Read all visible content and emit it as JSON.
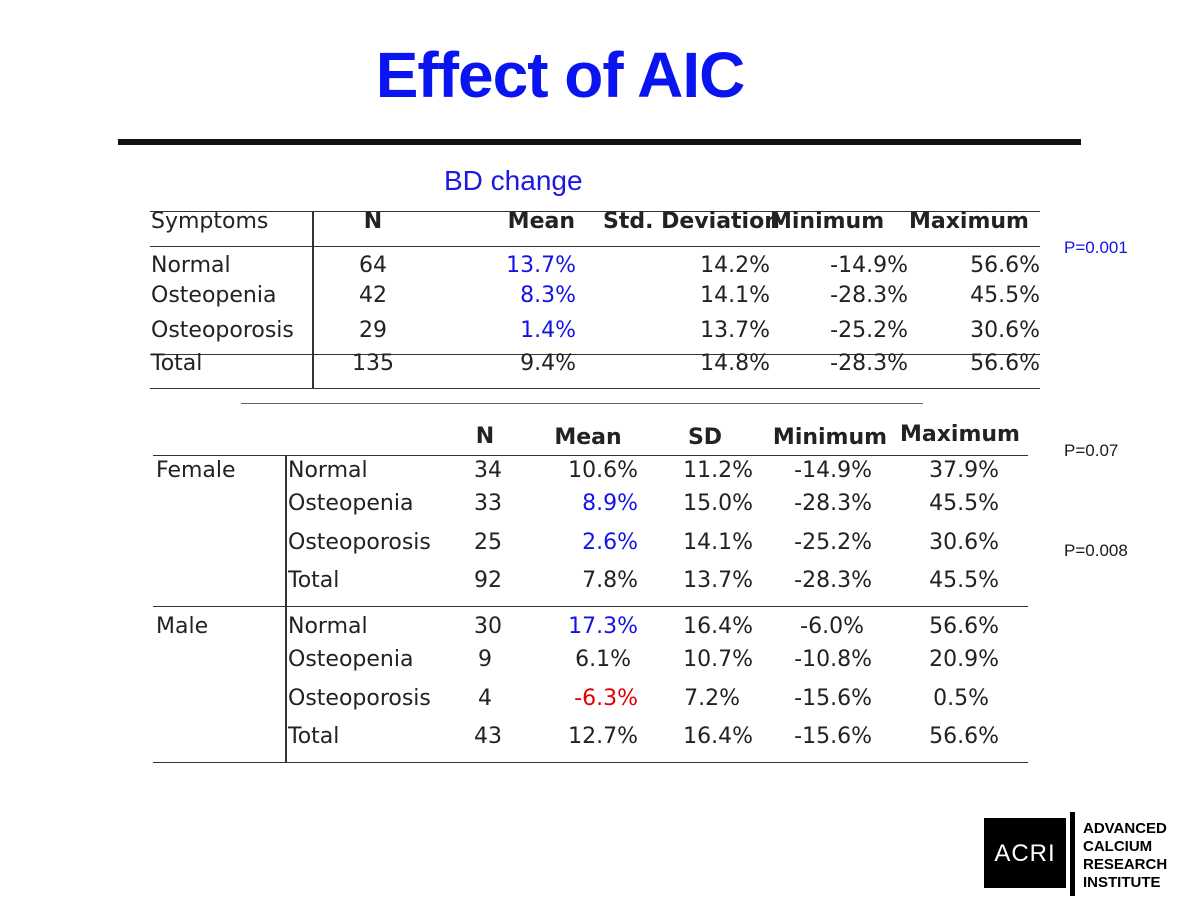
{
  "title": "Effect of AIC",
  "subtitle": "BD change",
  "table1": {
    "headers": [
      "Symptoms",
      "N",
      "Mean",
      "Std. Deviation",
      "Minimum",
      "Maximum"
    ],
    "rows": [
      {
        "label": "Normal",
        "n": "64",
        "mean": "13.7%",
        "sd": "14.2%",
        "min": "-14.9%",
        "max": "56.6%"
      },
      {
        "label": "Osteopenia",
        "n": "42",
        "mean": "8.3%",
        "sd": "14.1%",
        "min": "-28.3%",
        "max": "45.5%"
      },
      {
        "label": "Osteoporosis",
        "n": "29",
        "mean": "1.4%",
        "sd": "13.7%",
        "min": "-25.2%",
        "max": "30.6%"
      },
      {
        "label": "Total",
        "n": "135",
        "mean": "9.4%",
        "sd": "14.8%",
        "min": "-28.3%",
        "max": "56.6%"
      }
    ],
    "p_value": "P=0.001"
  },
  "table2": {
    "headers": [
      "N",
      "Mean",
      "SD",
      "Minimum",
      "Maximum"
    ],
    "groups": [
      {
        "label": "Female",
        "rows": [
          {
            "label": "Normal",
            "n": "34",
            "mean": "10.6%",
            "sd": "11.2%",
            "min": "-14.9%",
            "max": "37.9%"
          },
          {
            "label": "Osteopenia",
            "n": "33",
            "mean": "8.9%",
            "sd": "15.0%",
            "min": "-28.3%",
            "max": "45.5%"
          },
          {
            "label": "Osteoporosis",
            "n": "25",
            "mean": "2.6%",
            "sd": "14.1%",
            "min": "-25.2%",
            "max": "30.6%"
          },
          {
            "label": "Total",
            "n": "92",
            "mean": "7.8%",
            "sd": "13.7%",
            "min": "-28.3%",
            "max": "45.5%"
          }
        ]
      },
      {
        "label": "Male",
        "rows": [
          {
            "label": "Normal",
            "n": "30",
            "mean": "17.3%",
            "sd": "16.4%",
            "min": "-6.0%",
            "max": "56.6%"
          },
          {
            "label": "Osteopenia",
            "n": "9",
            "mean": "6.1%",
            "sd": "10.7%",
            "min": "-10.8%",
            "max": "20.9%"
          },
          {
            "label": "Osteoporosis",
            "n": "4",
            "mean": "-6.3%",
            "sd": "7.2%",
            "min": "-15.6%",
            "max": "0.5%"
          },
          {
            "label": "Total",
            "n": "43",
            "mean": "12.7%",
            "sd": "16.4%",
            "min": "-15.6%",
            "max": "56.6%"
          }
        ]
      }
    ],
    "p_values": [
      "P=0.07",
      "P=0.008"
    ]
  },
  "logo": {
    "mark": "ACRI",
    "name_lines": [
      "ADVANCED",
      "CALCIUM",
      "RESEARCH",
      "INSTITUTE"
    ]
  },
  "colors": {
    "title": "#0a14f0",
    "highlight_blue": "#1414e6",
    "highlight_red": "#e60000"
  }
}
